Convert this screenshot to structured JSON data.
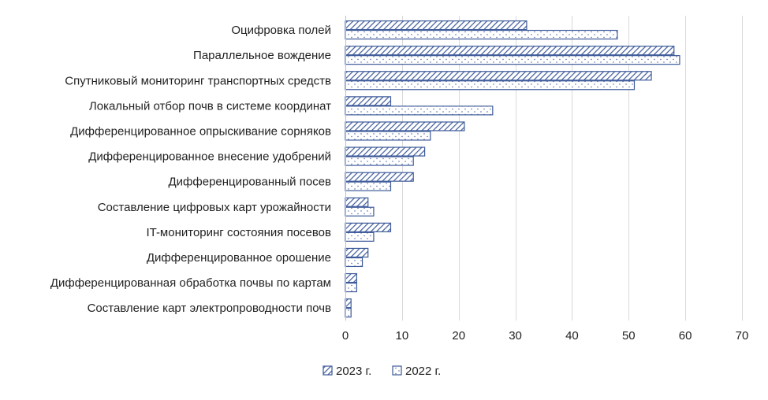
{
  "chart_data": {
    "type": "bar",
    "orientation": "horizontal",
    "categories": [
      "Оцифровка полей",
      "Параллельное вождение",
      "Спутниковый мониторинг транспортных средств",
      "Локальный отбор почв в системе координат",
      "Дифференцированное опрыскивание сорняков",
      "Дифференцированное внесение удобрений",
      "Дифференцированный посев",
      "Составление цифровых карт урожайности",
      "IT-мониторинг состояния посевов",
      "Дифференцированное орошение",
      "Дифференцированная обработка почвы по картам",
      "Составление карт электропроводности почв"
    ],
    "series": [
      {
        "name": "2023 г.",
        "pattern": "diagonal-hatch",
        "values": [
          32,
          58,
          54,
          8,
          21,
          14,
          12,
          4,
          8,
          4,
          2,
          1
        ]
      },
      {
        "name": "2022 г.",
        "pattern": "dots",
        "values": [
          48,
          59,
          51,
          26,
          15,
          12,
          8,
          5,
          5,
          3,
          2,
          1
        ]
      }
    ],
    "xlim": [
      0,
      70
    ],
    "xticks": [
      0,
      10,
      20,
      30,
      40,
      50,
      60,
      70
    ],
    "grid": true,
    "legend_position": "bottom",
    "colors": {
      "bar_edge": "#3d5a99",
      "hatch": "#3d5a99",
      "grid": "#d9d9d9"
    }
  }
}
